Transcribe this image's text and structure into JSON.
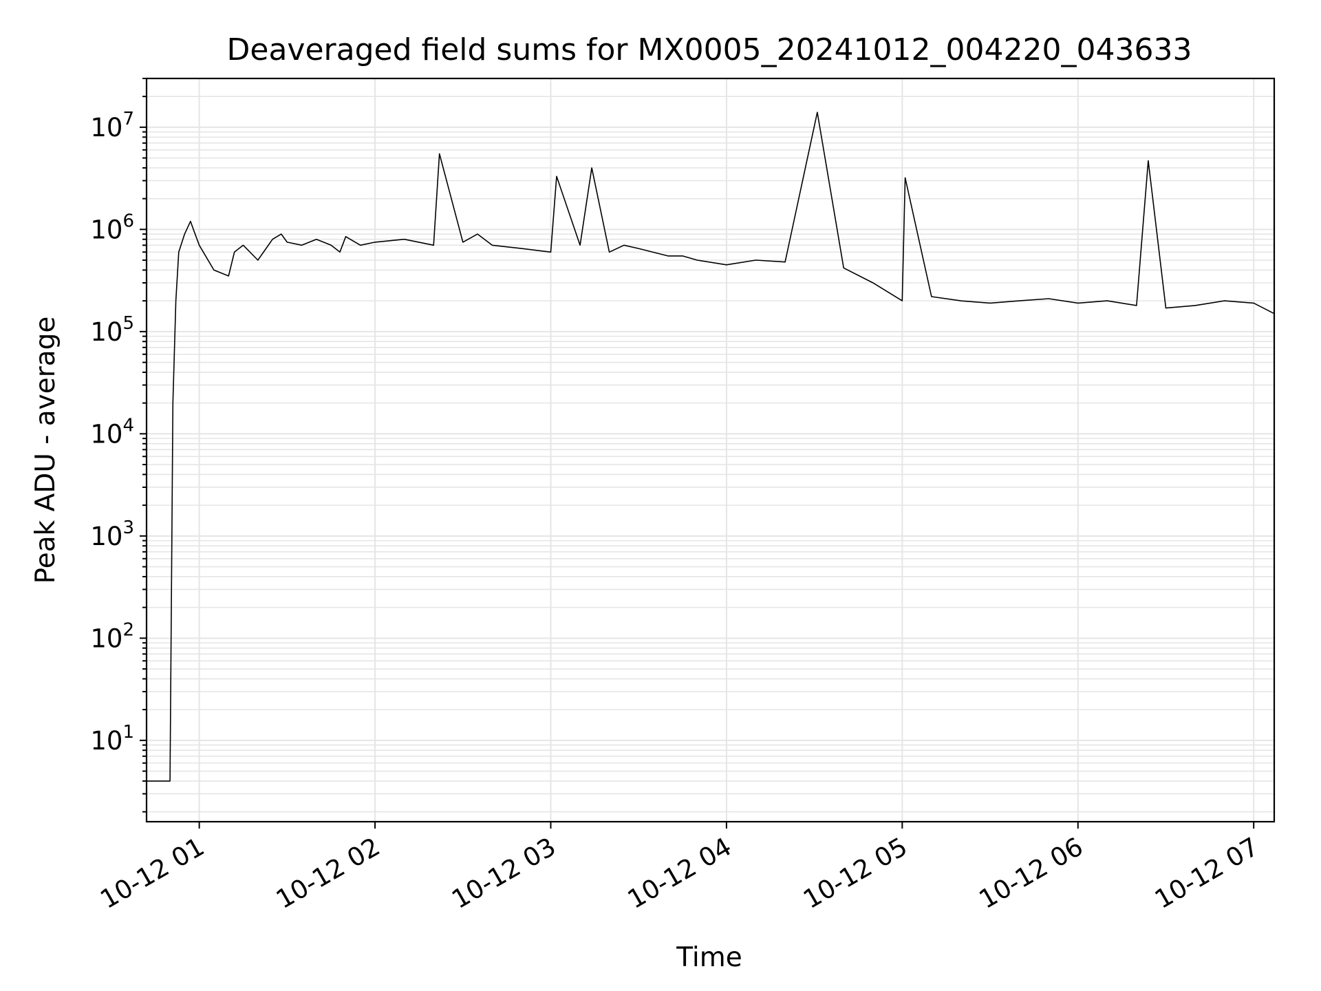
{
  "chart_data": {
    "type": "line",
    "title": "Deaveraged field sums for MX0005_20241012_004220_043633",
    "xlabel": "Time",
    "ylabel": "Peak ADU - average",
    "yscale": "log",
    "grid": true,
    "line_color": "#000000",
    "grid_color": "#e5e5e5",
    "xlim": [
      "10-12 00:42",
      "10-12 07:07"
    ],
    "ylim": [
      1.6,
      30000000
    ],
    "x_ticks": [
      {
        "value": "10-12 01:00",
        "label": "10-12 01"
      },
      {
        "value": "10-12 02:00",
        "label": "10-12 02"
      },
      {
        "value": "10-12 03:00",
        "label": "10-12 03"
      },
      {
        "value": "10-12 04:00",
        "label": "10-12 04"
      },
      {
        "value": "10-12 05:00",
        "label": "10-12 05"
      },
      {
        "value": "10-12 06:00",
        "label": "10-12 06"
      },
      {
        "value": "10-12 07:00",
        "label": "10-12 07"
      }
    ],
    "y_ticks": [
      {
        "value": 10,
        "base": "10",
        "exp": "1"
      },
      {
        "value": 100,
        "base": "10",
        "exp": "2"
      },
      {
        "value": 1000,
        "base": "10",
        "exp": "3"
      },
      {
        "value": 10000,
        "base": "10",
        "exp": "4"
      },
      {
        "value": 100000,
        "base": "10",
        "exp": "5"
      },
      {
        "value": 1000000,
        "base": "10",
        "exp": "6"
      },
      {
        "value": 10000000,
        "base": "10",
        "exp": "7"
      }
    ],
    "series": [
      {
        "x": [
          "10-12 00:42",
          "10-12 00:48",
          "10-12 00:50",
          "10-12 00:51",
          "10-12 00:52",
          "10-12 00:53",
          "10-12 00:55",
          "10-12 00:57",
          "10-12 00:58",
          "10-12 01:00",
          "10-12 01:05",
          "10-12 01:10",
          "10-12 01:12",
          "10-12 01:15",
          "10-12 01:20",
          "10-12 01:25",
          "10-12 01:28",
          "10-12 01:30",
          "10-12 01:35",
          "10-12 01:40",
          "10-12 01:45",
          "10-12 01:48",
          "10-12 01:50",
          "10-12 01:55",
          "10-12 02:00",
          "10-12 02:10",
          "10-12 02:20",
          "10-12 02:22",
          "10-12 02:30",
          "10-12 02:35",
          "10-12 02:40",
          "10-12 02:50",
          "10-12 03:00",
          "10-12 03:02",
          "10-12 03:10",
          "10-12 03:14",
          "10-12 03:20",
          "10-12 03:25",
          "10-12 03:30",
          "10-12 03:40",
          "10-12 03:45",
          "10-12 03:50",
          "10-12 04:00",
          "10-12 04:10",
          "10-12 04:20",
          "10-12 04:31",
          "10-12 04:40",
          "10-12 04:50",
          "10-12 05:00",
          "10-12 05:01",
          "10-12 05:10",
          "10-12 05:20",
          "10-12 05:30",
          "10-12 05:40",
          "10-12 05:50",
          "10-12 06:00",
          "10-12 06:10",
          "10-12 06:20",
          "10-12 06:24",
          "10-12 06:30",
          "10-12 06:40",
          "10-12 06:50",
          "10-12 07:00",
          "10-12 07:07"
        ],
        "y": [
          4,
          4,
          4,
          20000,
          200000,
          600000,
          900000,
          1200000,
          1000000,
          700000,
          400000,
          350000,
          600000,
          700000,
          500000,
          800000,
          900000,
          750000,
          700000,
          800000,
          700000,
          600000,
          850000,
          700000,
          750000,
          800000,
          700000,
          5500000,
          750000,
          900000,
          700000,
          650000,
          600000,
          3300000,
          700000,
          4000000,
          600000,
          700000,
          650000,
          550000,
          550000,
          500000,
          450000,
          500000,
          480000,
          14000000,
          420000,
          300000,
          200000,
          3200000,
          220000,
          200000,
          190000,
          200000,
          210000,
          190000,
          200000,
          180000,
          4700000,
          170000,
          180000,
          200000,
          190000,
          150000
        ]
      }
    ]
  }
}
